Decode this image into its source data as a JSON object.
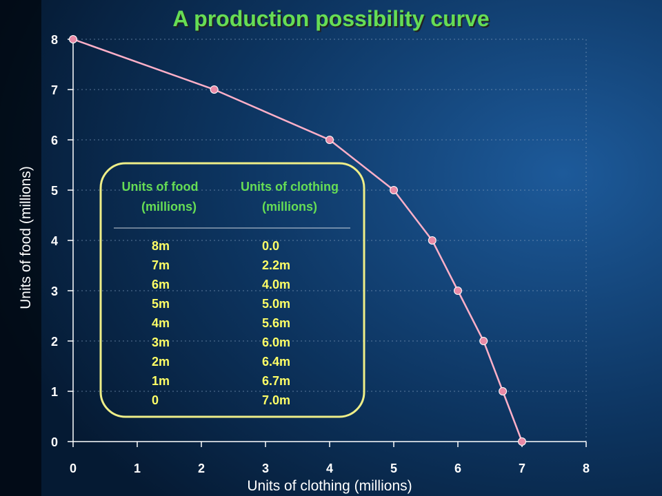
{
  "colors": {
    "title": "#66dd55",
    "table_header": "#66dd55",
    "table_value": "#ffff66",
    "curve": "#ffb0c8",
    "point": "#e88aa6",
    "box_border": "#eeee88"
  },
  "chart_data": {
    "type": "line",
    "title": "A production possibility curve",
    "xlabel": "Units of clothing (millions)",
    "ylabel": "Units of food (millions)",
    "xlim": [
      0,
      8
    ],
    "ylim": [
      0,
      8
    ],
    "x_ticks": [
      "0",
      "1",
      "2",
      "3",
      "4",
      "5",
      "6",
      "7",
      "8"
    ],
    "y_ticks": [
      "0",
      "1",
      "2",
      "3",
      "4",
      "5",
      "6",
      "7",
      "8"
    ],
    "grid": true,
    "x": [
      0,
      2.2,
      4.0,
      5.0,
      5.6,
      6.0,
      6.4,
      6.7,
      7.0
    ],
    "y": [
      8,
      7,
      6,
      5,
      4,
      3,
      2,
      1,
      0
    ]
  },
  "table": {
    "header_food": [
      "Units of food",
      "(millions)"
    ],
    "header_clothing": [
      "Units of clothing",
      "(millions)"
    ],
    "rows": [
      {
        "food": "8m",
        "clothing": "0.0"
      },
      {
        "food": "7m",
        "clothing": "2.2m"
      },
      {
        "food": "6m",
        "clothing": "4.0m"
      },
      {
        "food": "5m",
        "clothing": "5.0m"
      },
      {
        "food": "4m",
        "clothing": "5.6m"
      },
      {
        "food": "3m",
        "clothing": "6.0m"
      },
      {
        "food": "2m",
        "clothing": "6.4m"
      },
      {
        "food": "1m",
        "clothing": "6.7m"
      },
      {
        "food": "0",
        "clothing": "7.0m"
      }
    ]
  }
}
